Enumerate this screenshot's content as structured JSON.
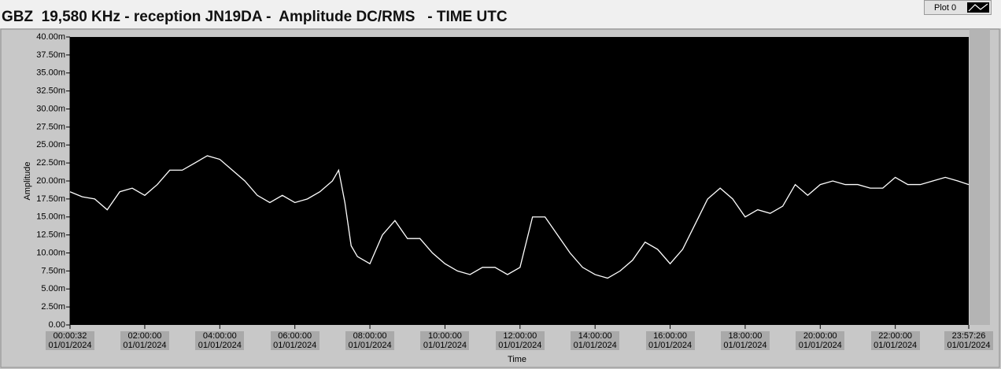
{
  "chart_data": {
    "type": "line",
    "title": "GBZ  19,580 KHz - reception JN19DA -  Amplitude DC/RMS   - TIME UTC",
    "x_label": "Time",
    "y_label": "Amplitude",
    "legend": "top-right",
    "grid": false,
    "xlim": [
      "2024-01-01T00:00:32",
      "2024-01-01T23:57:26"
    ],
    "xticks": [
      {
        "value": "2024-01-01T00:00:32",
        "label": "00:00:32 01/01/2024"
      },
      {
        "value": "2024-01-01T02:00:00",
        "label": "02:00:00 01/01/2024"
      },
      {
        "value": "2024-01-01T04:00:00",
        "label": "04:00:00 01/01/2024"
      },
      {
        "value": "2024-01-01T06:00:00",
        "label": "06:00:00 01/01/2024"
      },
      {
        "value": "2024-01-01T08:00:00",
        "label": "08:00:00 01/01/2024"
      },
      {
        "value": "2024-01-01T10:00:00",
        "label": "10:00:00 01/01/2024"
      },
      {
        "value": "2024-01-01T12:00:00",
        "label": "12:00:00 01/01/2024"
      },
      {
        "value": "2024-01-01T14:00:00",
        "label": "14:00:00 01/01/2024"
      },
      {
        "value": "2024-01-01T16:00:00",
        "label": "16:00:00 01/01/2024"
      },
      {
        "value": "2024-01-01T18:00:00",
        "label": "18:00:00 01/01/2024"
      },
      {
        "value": "2024-01-01T20:00:00",
        "label": "20:00:00 01/01/2024"
      },
      {
        "value": "2024-01-01T22:00:00",
        "label": "22:00:00 01/01/2024"
      },
      {
        "value": "2024-01-01T23:57:26",
        "label": "23:57:26 01/01/2024"
      }
    ],
    "ylim": [
      0,
      0.04
    ],
    "yticks": [
      {
        "value": 0,
        "label": "0.00"
      },
      {
        "value": 0.0025,
        "label": "2.50m"
      },
      {
        "value": 0.005,
        "label": "5.00m"
      },
      {
        "value": 0.0075,
        "label": "7.50m"
      },
      {
        "value": 0.01,
        "label": "10.00m"
      },
      {
        "value": 0.0125,
        "label": "12.50m"
      },
      {
        "value": 0.015,
        "label": "15.00m"
      },
      {
        "value": 0.0175,
        "label": "17.50m"
      },
      {
        "value": 0.02,
        "label": "20.00m"
      },
      {
        "value": 0.0225,
        "label": "22.50m"
      },
      {
        "value": 0.025,
        "label": "25.00m"
      },
      {
        "value": 0.0275,
        "label": "27.50m"
      },
      {
        "value": 0.03,
        "label": "30.00m"
      },
      {
        "value": 0.0325,
        "label": "32.50m"
      },
      {
        "value": 0.035,
        "label": "35.00m"
      },
      {
        "value": 0.0375,
        "label": "37.50m"
      },
      {
        "value": 0.04,
        "label": "40.00m"
      }
    ],
    "series": [
      {
        "name": "Plot 0",
        "color": "#ffffff",
        "x": [
          "2024-01-01T00:00:32",
          "2024-01-01T00:20:00",
          "2024-01-01T00:40:00",
          "2024-01-01T01:00:00",
          "2024-01-01T01:20:00",
          "2024-01-01T01:40:00",
          "2024-01-01T02:00:00",
          "2024-01-01T02:20:00",
          "2024-01-01T02:40:00",
          "2024-01-01T03:00:00",
          "2024-01-01T03:20:00",
          "2024-01-01T03:40:00",
          "2024-01-01T04:00:00",
          "2024-01-01T04:20:00",
          "2024-01-01T04:40:00",
          "2024-01-01T05:00:00",
          "2024-01-01T05:20:00",
          "2024-01-01T05:40:00",
          "2024-01-01T06:00:00",
          "2024-01-01T06:20:00",
          "2024-01-01T06:40:00",
          "2024-01-01T07:00:00",
          "2024-01-01T07:10:00",
          "2024-01-01T07:20:00",
          "2024-01-01T07:30:00",
          "2024-01-01T07:40:00",
          "2024-01-01T08:00:00",
          "2024-01-01T08:20:00",
          "2024-01-01T08:40:00",
          "2024-01-01T09:00:00",
          "2024-01-01T09:20:00",
          "2024-01-01T09:40:00",
          "2024-01-01T10:00:00",
          "2024-01-01T10:20:00",
          "2024-01-01T10:40:00",
          "2024-01-01T11:00:00",
          "2024-01-01T11:20:00",
          "2024-01-01T11:40:00",
          "2024-01-01T12:00:00",
          "2024-01-01T12:20:00",
          "2024-01-01T12:40:00",
          "2024-01-01T13:00:00",
          "2024-01-01T13:20:00",
          "2024-01-01T13:40:00",
          "2024-01-01T14:00:00",
          "2024-01-01T14:20:00",
          "2024-01-01T14:40:00",
          "2024-01-01T15:00:00",
          "2024-01-01T15:20:00",
          "2024-01-01T15:40:00",
          "2024-01-01T16:00:00",
          "2024-01-01T16:20:00",
          "2024-01-01T16:40:00",
          "2024-01-01T17:00:00",
          "2024-01-01T17:20:00",
          "2024-01-01T17:40:00",
          "2024-01-01T18:00:00",
          "2024-01-01T18:20:00",
          "2024-01-01T18:40:00",
          "2024-01-01T19:00:00",
          "2024-01-01T19:20:00",
          "2024-01-01T19:40:00",
          "2024-01-01T20:00:00",
          "2024-01-01T20:20:00",
          "2024-01-01T20:40:00",
          "2024-01-01T21:00:00",
          "2024-01-01T21:20:00",
          "2024-01-01T21:40:00",
          "2024-01-01T22:00:00",
          "2024-01-01T22:20:00",
          "2024-01-01T22:40:00",
          "2024-01-01T23:00:00",
          "2024-01-01T23:20:00",
          "2024-01-01T23:40:00",
          "2024-01-01T23:57:26"
        ],
        "values": [
          0.0185,
          0.0178,
          0.0175,
          0.016,
          0.0185,
          0.019,
          0.018,
          0.0195,
          0.0215,
          0.0215,
          0.0225,
          0.0235,
          0.023,
          0.0215,
          0.02,
          0.018,
          0.017,
          0.018,
          0.017,
          0.0175,
          0.0185,
          0.02,
          0.0215,
          0.017,
          0.011,
          0.0095,
          0.0085,
          0.0125,
          0.0145,
          0.012,
          0.012,
          0.01,
          0.0085,
          0.0075,
          0.007,
          0.008,
          0.008,
          0.007,
          0.008,
          0.015,
          0.015,
          0.0125,
          0.01,
          0.008,
          0.007,
          0.0065,
          0.0075,
          0.009,
          0.0115,
          0.0105,
          0.0085,
          0.0105,
          0.014,
          0.0175,
          0.019,
          0.0175,
          0.015,
          0.016,
          0.0155,
          0.0165,
          0.0195,
          0.018,
          0.0195,
          0.02,
          0.0195,
          0.0195,
          0.019,
          0.019,
          0.0205,
          0.0195,
          0.0195,
          0.02,
          0.0205,
          0.02,
          0.0195
        ]
      }
    ]
  }
}
